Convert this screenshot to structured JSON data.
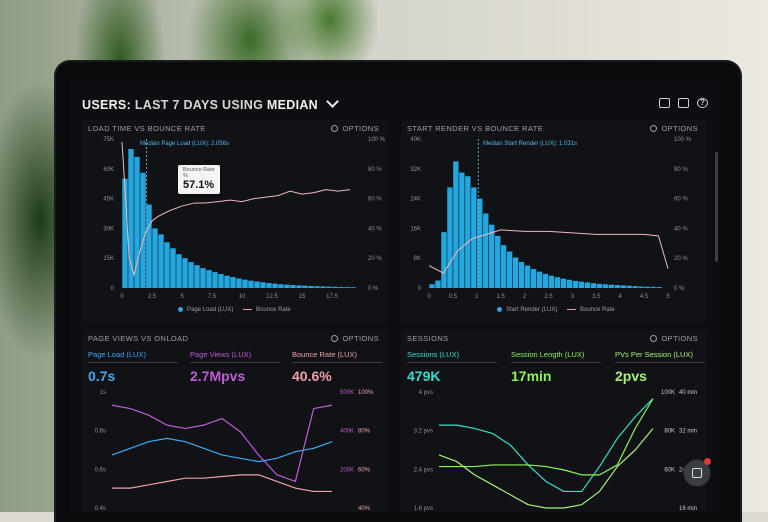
{
  "header": {
    "title_prefix": "USERS:",
    "title_range": "LAST 7 DAYS",
    "title_using": "USING",
    "title_metric": "MEDIAN"
  },
  "options_label": "OPTIONS",
  "panels": {
    "load_vs_bounce": {
      "title": "LOAD TIME VS BOUNCE RATE",
      "median_label": "Median Page Load (LUX): 2.056s",
      "tooltip_label": "Bounce Rate",
      "tooltip_sub": "%",
      "tooltip_value": "57.1%",
      "legend_bars": "Page Load (LUX)",
      "legend_line": "Bounce Rate"
    },
    "render_vs_bounce": {
      "title": "START RENDER VS BOUNCE RATE",
      "median_label": "Median Start Render (LUX): 1.031s",
      "legend_bars": "Start Render (LUX)",
      "legend_line": "Bounce Rate"
    },
    "pageviews": {
      "title": "PAGE VIEWS VS ONLOAD",
      "kpis": [
        {
          "label": "Page Load (LUX)",
          "value": "0.7s",
          "color": "#3fa9f5"
        },
        {
          "label": "Page Views (LUX)",
          "value": "2.7Mpvs",
          "color": "#c15bd6"
        },
        {
          "label": "Bounce Rate (LUX)",
          "value": "40.6%",
          "color": "#f0a0a8"
        }
      ]
    },
    "sessions": {
      "title": "SESSIONS",
      "kpis": [
        {
          "label": "Sessions (LUX)",
          "value": "479K",
          "color": "#36e0c9"
        },
        {
          "label": "Session Length (LUX)",
          "value": "17min",
          "color": "#8cf55a"
        },
        {
          "label": "PVs Per Session (LUX)",
          "value": "2pvs",
          "color": "#a8f07a"
        }
      ]
    }
  },
  "chart_data": [
    {
      "type": "bar",
      "title": "LOAD TIME VS BOUNCE RATE",
      "x_ticks": [
        "0",
        "2.5",
        "5",
        "7.5",
        "10",
        "12.5",
        "15",
        "17.5"
      ],
      "y_ticks": [
        "0",
        "15K",
        "30K",
        "45K",
        "60K",
        "75K"
      ],
      "y2_ticks": [
        "0 %",
        "20 %",
        "40 %",
        "60 %",
        "80 %",
        "100 %"
      ],
      "ylim": [
        0,
        75000
      ],
      "xlim": [
        0,
        20
      ],
      "bar_width": 0.5,
      "bar_x": [
        0.25,
        0.75,
        1.25,
        1.75,
        2.25,
        2.75,
        3.25,
        3.75,
        4.25,
        4.75,
        5.25,
        5.75,
        6.25,
        6.75,
        7.25,
        7.75,
        8.25,
        8.75,
        9.25,
        9.75,
        10.25,
        10.75,
        11.25,
        11.75,
        12.25,
        12.75,
        13.25,
        13.75,
        14.25,
        14.75,
        15.25,
        15.75,
        16.25,
        16.75,
        17.25,
        17.75,
        18.25,
        18.75,
        19.25
      ],
      "bars": [
        55000,
        70000,
        66000,
        58000,
        42000,
        30000,
        27000,
        23000,
        20000,
        17000,
        15000,
        13000,
        11500,
        10000,
        9000,
        8000,
        7000,
        6200,
        5500,
        4800,
        4200,
        3700,
        3300,
        2900,
        2500,
        2200,
        1900,
        1700,
        1500,
        1300,
        1200,
        1000,
        900,
        800,
        700,
        600,
        500,
        450,
        400
      ],
      "line_x": [
        0,
        0.3,
        0.6,
        1,
        1.5,
        2,
        2.5,
        3,
        4,
        5,
        6,
        7,
        8,
        9,
        10,
        11,
        12,
        13,
        14,
        15,
        16,
        17,
        18,
        19
      ],
      "line_pct": [
        98,
        60,
        20,
        9,
        25,
        38,
        45,
        48,
        52,
        55,
        57,
        57.1,
        58,
        59,
        58,
        60,
        61,
        62,
        65,
        63,
        64,
        66,
        65,
        66
      ],
      "median_x": 2.056,
      "series": [
        {
          "name": "Page Load (LUX)"
        },
        {
          "name": "Bounce Rate"
        }
      ]
    },
    {
      "type": "bar",
      "title": "START RENDER VS BOUNCE RATE",
      "x_ticks": [
        "0",
        "0.5",
        "1",
        "1.5",
        "2",
        "2.5",
        "3",
        "3.5",
        "4",
        "4.5",
        "5"
      ],
      "y_ticks": [
        "0",
        "8K",
        "16K",
        "24K",
        "32K",
        "40K"
      ],
      "y2_ticks": [
        "0 %",
        "20 %",
        "40 %",
        "60 %",
        "80 %",
        "100 %"
      ],
      "ylim": [
        0,
        40000
      ],
      "xlim": [
        0,
        5
      ],
      "bar_width": 0.125,
      "bar_x": [
        0.0625,
        0.1875,
        0.3125,
        0.4375,
        0.5625,
        0.6875,
        0.8125,
        0.9375,
        1.0625,
        1.1875,
        1.3125,
        1.4375,
        1.5625,
        1.6875,
        1.8125,
        1.9375,
        2.0625,
        2.1875,
        2.3125,
        2.4375,
        2.5625,
        2.6875,
        2.8125,
        2.9375,
        3.0625,
        3.1875,
        3.3125,
        3.4375,
        3.5625,
        3.6875,
        3.8125,
        3.9375,
        4.0625,
        4.1875,
        4.3125,
        4.4375,
        4.5625,
        4.6875,
        4.8125
      ],
      "bars": [
        1000,
        2000,
        15000,
        27000,
        34000,
        31000,
        30000,
        27000,
        24000,
        20000,
        17000,
        14000,
        11500,
        9800,
        8200,
        7000,
        6000,
        5100,
        4400,
        3800,
        3300,
        2900,
        2500,
        2200,
        1900,
        1700,
        1500,
        1300,
        1100,
        1000,
        900,
        800,
        700,
        600,
        500,
        400,
        350,
        300,
        250
      ],
      "line_x": [
        0,
        0.3,
        0.6,
        0.9,
        1.2,
        1.5,
        2,
        2.5,
        3,
        3.5,
        4,
        4.5,
        4.8,
        5
      ],
      "line_pct": [
        15,
        10,
        25,
        33,
        36,
        39,
        38,
        38,
        37,
        36,
        36,
        36,
        35,
        13
      ],
      "median_x": 1.031,
      "series": [
        {
          "name": "Start Render (LUX)"
        },
        {
          "name": "Bounce Rate"
        }
      ]
    },
    {
      "type": "line",
      "title": "PAGE VIEWS VS ONLOAD",
      "y_ticks_left": [
        "0.4s",
        "0.6s",
        "0.8s",
        "1s"
      ],
      "y_ticks_right_a": [
        "200K",
        "400K",
        "500K"
      ],
      "y_ticks_right_b": [
        "40%",
        "60%",
        "80%",
        "100%"
      ],
      "series": [
        {
          "name": "Page Load (LUX)",
          "color": "#3fa9f5",
          "values": [
            0.62,
            0.66,
            0.7,
            0.72,
            0.7,
            0.66,
            0.62,
            0.6,
            0.58,
            0.6,
            0.64,
            0.66,
            0.7
          ]
        },
        {
          "name": "Page Views (LUX)",
          "color": "#c15bd6",
          "values": [
            0.92,
            0.9,
            0.86,
            0.8,
            0.78,
            0.8,
            0.84,
            0.76,
            0.62,
            0.5,
            0.46,
            0.9,
            0.92
          ]
        },
        {
          "name": "Bounce Rate (LUX)",
          "color": "#f0a0a8",
          "values": [
            0.42,
            0.42,
            0.44,
            0.46,
            0.48,
            0.48,
            0.49,
            0.5,
            0.5,
            0.46,
            0.42,
            0.4,
            0.4
          ]
        }
      ]
    },
    {
      "type": "line",
      "title": "SESSIONS",
      "y_ticks_left": [
        "1.6 pvs",
        "2.4 pvs",
        "3.2 pvs",
        "4 pvs"
      ],
      "y_ticks_right_a": [
        "60K",
        "80K",
        "100K"
      ],
      "y_ticks_right_b": [
        "16 min",
        "24 min",
        "32 min",
        "40 min"
      ],
      "series": [
        {
          "name": "Sessions (LUX)",
          "color": "#36e0c9",
          "values": [
            0.8,
            0.8,
            0.78,
            0.75,
            0.68,
            0.56,
            0.46,
            0.4,
            0.4,
            0.55,
            0.72,
            0.85,
            0.96
          ]
        },
        {
          "name": "Session Length (LUX)",
          "color": "#8cf55a",
          "values": [
            0.55,
            0.55,
            0.55,
            0.56,
            0.56,
            0.56,
            0.55,
            0.53,
            0.5,
            0.5,
            0.56,
            0.78,
            0.96
          ]
        },
        {
          "name": "PVs Per Session (LUX)",
          "color": "#a8f07a",
          "values": [
            0.62,
            0.58,
            0.5,
            0.44,
            0.38,
            0.32,
            0.3,
            0.3,
            0.32,
            0.4,
            0.55,
            0.65,
            0.78
          ]
        }
      ]
    }
  ]
}
